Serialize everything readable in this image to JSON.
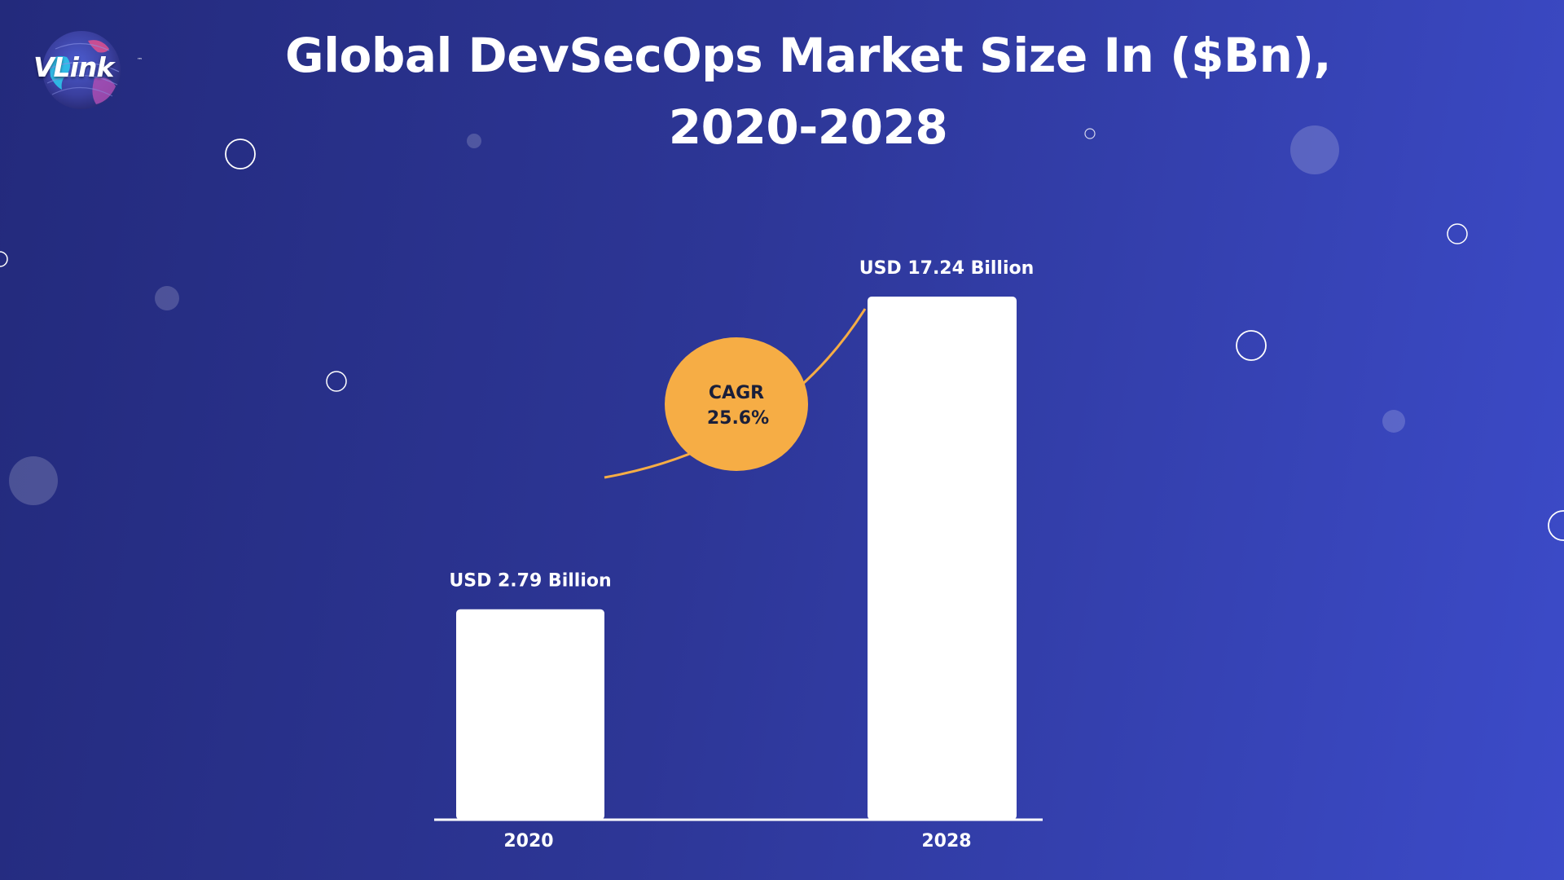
{
  "brand": {
    "logo_text": "VLink",
    "logo_tm": "™"
  },
  "title": {
    "line1": "Global DevSecOps Market Size In ($Bn),",
    "line2": "2020-2028"
  },
  "colors": {
    "background_start": "#232a7c",
    "background_end": "#3c4bc9",
    "bar": "#ffffff",
    "cagr_badge": "#f6ad45",
    "connector": "#f6ad45",
    "text": "#ffffff",
    "badge_text": "#1a1f3a"
  },
  "chart_data": {
    "type": "bar",
    "categories": [
      "2020",
      "2028"
    ],
    "values": [
      2.79,
      17.24
    ],
    "value_labels": [
      "USD 2.79 Billion",
      "USD 17.24 Billion"
    ],
    "title": "Global DevSecOps Market Size In ($Bn), 2020-2028",
    "xlabel": "",
    "ylabel": "",
    "annotation": {
      "label": "CAGR",
      "value": "25.6%"
    },
    "grid": false
  }
}
